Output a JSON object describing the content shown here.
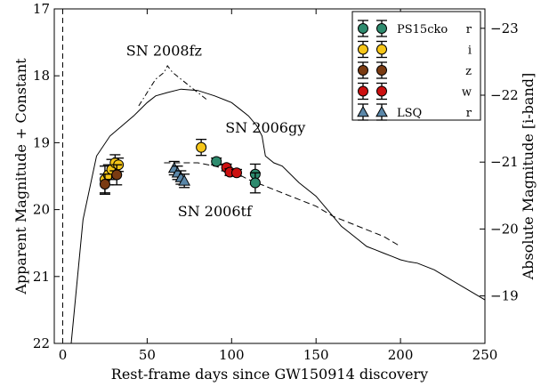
{
  "chart_data": {
    "type": "scatter",
    "xlabel": "Rest-frame days since GW150914 discovery",
    "ylabel": "Apparent Magnitude + Constant",
    "y2label": "Absolute Magnitude [i-band]",
    "xlim": [
      -5,
      250
    ],
    "ylim": [
      22,
      17
    ],
    "y2lim": [
      -18.29,
      -23.29
    ],
    "x_ticks": [
      0,
      50,
      100,
      150,
      200,
      250
    ],
    "y_ticks": [
      17,
      18,
      19,
      20,
      21,
      22
    ],
    "y2_ticks": [
      -23,
      -22,
      -21,
      -20,
      -19
    ],
    "grid": false,
    "legend_position": "top-right",
    "vline_x": 0,
    "annotations": [
      {
        "text": "SN 2008fz",
        "x": 60,
        "y": 17.7
      },
      {
        "text": "SN 2006gy",
        "x": 120,
        "y": 18.85
      },
      {
        "text": "SN 2006tf",
        "x": 90,
        "y": 20.1
      }
    ],
    "series": [
      {
        "name": "r",
        "marker": "circle",
        "color": "#2e8b6e",
        "points": [
          {
            "x": 91,
            "y": 19.28,
            "err": 0.05
          },
          {
            "x": 114,
            "y": 19.47,
            "err": 0.15
          },
          {
            "x": 114,
            "y": 19.6,
            "err": 0.15
          }
        ]
      },
      {
        "name": "i",
        "marker": "circle",
        "color": "#f5c518",
        "points": [
          {
            "x": 25,
            "y": 19.55,
            "err": 0.2
          },
          {
            "x": 27,
            "y": 19.48,
            "err": 0.15
          },
          {
            "x": 29,
            "y": 19.4,
            "err": 0.15
          },
          {
            "x": 31,
            "y": 19.3,
            "err": 0.12
          },
          {
            "x": 33,
            "y": 19.33,
            "err": 0.1
          },
          {
            "x": 82,
            "y": 19.07,
            "err": 0.12
          }
        ]
      },
      {
        "name": "z",
        "marker": "circle",
        "color": "#7a3b12",
        "points": [
          {
            "x": 25,
            "y": 19.62,
            "err": 0.15
          },
          {
            "x": 32,
            "y": 19.48,
            "err": 0.15
          }
        ]
      },
      {
        "name": "w",
        "marker": "circle",
        "color": "#cc1010",
        "points": [
          {
            "x": 97,
            "y": 19.37,
            "err": 0.05
          },
          {
            "x": 99,
            "y": 19.44,
            "err": 0.05
          },
          {
            "x": 103,
            "y": 19.45,
            "err": 0.05
          }
        ]
      },
      {
        "name": "r",
        "marker": "triangle",
        "color": "#5b87a8",
        "points": [
          {
            "x": 66,
            "y": 19.38,
            "err": 0.1
          },
          {
            "x": 68,
            "y": 19.45,
            "err": 0.1
          },
          {
            "x": 70,
            "y": 19.52,
            "err": 0.1
          },
          {
            "x": 72,
            "y": 19.57,
            "err": 0.1
          }
        ]
      }
    ],
    "legend": {
      "survey_labels": [
        {
          "text": "PS15cko",
          "row": 0
        },
        {
          "text": "LSQ",
          "row": 4
        }
      ],
      "band_labels": [
        "r",
        "i",
        "z",
        "w",
        "r"
      ]
    },
    "template_curves": [
      {
        "label": "SN 2006gy",
        "style": "solid",
        "points": [
          [
            5,
            22
          ],
          [
            12,
            20.15
          ],
          [
            20,
            19.2
          ],
          [
            28,
            18.9
          ],
          [
            35,
            18.75
          ],
          [
            42,
            18.6
          ],
          [
            50,
            18.4
          ],
          [
            55,
            18.3
          ],
          [
            62,
            18.25
          ],
          [
            70,
            18.2
          ],
          [
            80,
            18.22
          ],
          [
            90,
            18.3
          ],
          [
            100,
            18.4
          ],
          [
            105,
            18.5
          ],
          [
            110,
            18.6
          ],
          [
            115,
            18.75
          ],
          [
            118,
            18.9
          ],
          [
            120,
            19.2
          ],
          [
            125,
            19.3
          ],
          [
            130,
            19.35
          ],
          [
            140,
            19.6
          ],
          [
            150,
            19.8
          ],
          [
            155,
            19.95
          ],
          [
            160,
            20.1
          ],
          [
            165,
            20.25
          ],
          [
            170,
            20.35
          ],
          [
            175,
            20.45
          ],
          [
            180,
            20.55
          ],
          [
            185,
            20.6
          ],
          [
            190,
            20.65
          ],
          [
            195,
            20.7
          ],
          [
            200,
            20.75
          ],
          [
            205,
            20.78
          ],
          [
            210,
            20.8
          ],
          [
            220,
            20.9
          ],
          [
            230,
            21.05
          ],
          [
            240,
            21.2
          ],
          [
            250,
            21.35
          ]
        ]
      },
      {
        "label": "SN 2008fz",
        "style": "dashdot",
        "points": [
          [
            45,
            18.45
          ],
          [
            50,
            18.25
          ],
          [
            55,
            18.05
          ],
          [
            60,
            17.95
          ],
          [
            62,
            17.85
          ],
          [
            65,
            17.95
          ],
          [
            70,
            18.05
          ],
          [
            75,
            18.15
          ],
          [
            80,
            18.25
          ],
          [
            85,
            18.35
          ]
        ]
      },
      {
        "label": "SN 2006tf",
        "style": "dashed",
        "points": [
          [
            60,
            19.3
          ],
          [
            70,
            19.3
          ],
          [
            80,
            19.3
          ],
          [
            90,
            19.35
          ],
          [
            100,
            19.42
          ],
          [
            110,
            19.55
          ],
          [
            120,
            19.65
          ],
          [
            130,
            19.75
          ],
          [
            140,
            19.85
          ],
          [
            150,
            19.95
          ],
          [
            160,
            20.1
          ],
          [
            170,
            20.2
          ],
          [
            180,
            20.3
          ],
          [
            190,
            20.4
          ],
          [
            200,
            20.55
          ]
        ]
      }
    ]
  }
}
